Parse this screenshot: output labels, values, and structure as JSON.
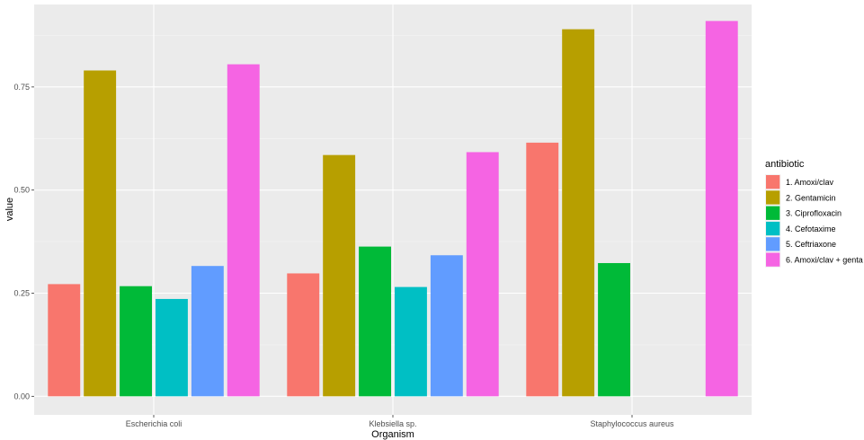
{
  "chart_data": {
    "type": "bar",
    "xlabel": "Organism",
    "ylabel": "value",
    "ylim": [
      -0.045,
      0.95
    ],
    "yticks": [
      0.0,
      0.25,
      0.5,
      0.75
    ],
    "ytick_labels": [
      "0.00",
      "0.25",
      "0.50",
      "0.75"
    ],
    "categories": [
      "Escherichia coli",
      "Klebsiella sp.",
      "Staphylococcus aureus"
    ],
    "grid": true,
    "legend": {
      "title": "antibiotic",
      "position": "right"
    },
    "series": [
      {
        "name": "1. Amoxi/clav",
        "color": "#F8766D",
        "values": [
          0.272,
          0.298,
          0.615
        ]
      },
      {
        "name": "2. Gentamicin",
        "color": "#B79F00",
        "values": [
          0.79,
          0.585,
          0.89
        ]
      },
      {
        "name": "3. Ciprofloxacin",
        "color": "#00BA38",
        "values": [
          0.267,
          0.363,
          0.323
        ]
      },
      {
        "name": "4. Cefotaxime",
        "color": "#00BFC4",
        "values": [
          0.236,
          0.265,
          null
        ]
      },
      {
        "name": "5. Ceftriaxone",
        "color": "#619CFF",
        "values": [
          0.316,
          0.342,
          null
        ]
      },
      {
        "name": "6. Amoxi/clav + genta",
        "color": "#F564E3",
        "values": [
          0.805,
          0.592,
          0.91
        ]
      }
    ]
  }
}
